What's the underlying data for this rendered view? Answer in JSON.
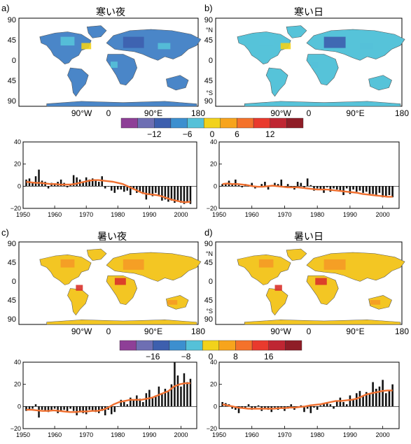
{
  "panels": [
    {
      "letter": "a)",
      "title": "寒い夜"
    },
    {
      "letter": "b)",
      "title": "寒い日"
    },
    {
      "letter": "c)",
      "title": "暑い夜"
    },
    {
      "letter": "d)",
      "title": "暑い日"
    }
  ],
  "map_axes": {
    "lat_ticks": [
      "90",
      "45",
      "0",
      "45",
      "90"
    ],
    "lat_units": [
      "°N",
      "°S"
    ],
    "lon_ticks": [
      "90°W",
      "0",
      "90°E",
      "180"
    ]
  },
  "colorbars": [
    {
      "labels": [
        "−12",
        "−6",
        "0",
        "6",
        "12"
      ],
      "colors": [
        "#8e3f97",
        "#6e6fb3",
        "#3d5fae",
        "#3c8fcf",
        "#55c1d8",
        "#f2d21b",
        "#f7a41c",
        "#f4722b",
        "#e93a2d",
        "#bf2632",
        "#8f1d27"
      ]
    },
    {
      "labels": [
        "−16",
        "−8",
        "0",
        "8",
        "16"
      ],
      "colors": [
        "#8e3f97",
        "#6e6fb3",
        "#3d5fae",
        "#3c8fcf",
        "#55c1d8",
        "#f2d21b",
        "#f7a41c",
        "#f4722b",
        "#e93a2d",
        "#bf2632",
        "#8f1d27"
      ]
    }
  ],
  "map_colors": {
    "ocean": "#ffffff",
    "coast": "#555555",
    "box": "#000000",
    "cold_fill": "#4a86c8",
    "cold_light": "#56c3d9",
    "warm_fill": "#f3c623",
    "warm_dark": "#f59a26",
    "red": "#d9322b"
  },
  "line_color": "#f07030",
  "chart_data": [
    {
      "type": "bar",
      "panel": "a",
      "title": "寒い夜",
      "xlim": [
        1950,
        2005
      ],
      "ylim": [
        -20,
        40
      ],
      "xticks": [
        1950,
        1960,
        1970,
        1980,
        1990,
        2000
      ],
      "yticks": [
        -20,
        0,
        20,
        40
      ],
      "x": [
        1951,
        1952,
        1953,
        1954,
        1955,
        1956,
        1957,
        1958,
        1959,
        1960,
        1961,
        1962,
        1963,
        1964,
        1965,
        1966,
        1967,
        1968,
        1969,
        1970,
        1971,
        1972,
        1973,
        1974,
        1975,
        1976,
        1977,
        1978,
        1979,
        1980,
        1981,
        1982,
        1983,
        1984,
        1985,
        1986,
        1987,
        1988,
        1989,
        1990,
        1991,
        1992,
        1993,
        1994,
        1995,
        1996,
        1997,
        1998,
        1999,
        2000,
        2001,
        2002,
        2003
      ],
      "values": [
        6,
        7,
        3,
        9,
        15,
        5,
        4,
        -2,
        3,
        2,
        4,
        6,
        3,
        -1,
        2,
        10,
        8,
        6,
        4,
        8,
        6,
        7,
        5,
        4,
        9,
        -2,
        0,
        -4,
        -6,
        -3,
        -3,
        -5,
        -4,
        -8,
        -3,
        -6,
        -5,
        -7,
        -12,
        -8,
        -9,
        -6,
        -8,
        -13,
        -12,
        -14,
        -13,
        -15,
        -14,
        -15,
        -16,
        -14,
        -16
      ],
      "trend": [
        4,
        3.5,
        3,
        3,
        2.5,
        2,
        2,
        1.5,
        1.5,
        1.5,
        2,
        3,
        4,
        5,
        5.5,
        5.5,
        5,
        4.5,
        4,
        3,
        2,
        0,
        -2,
        -4,
        -6,
        -7,
        -7.5,
        -8,
        -9,
        -10.5,
        -12,
        -13,
        -14,
        -14.5,
        -14
      ]
    },
    {
      "type": "bar",
      "panel": "b",
      "title": "寒い日",
      "xlim": [
        1950,
        2005
      ],
      "ylim": [
        -20,
        40
      ],
      "xticks": [
        1950,
        1960,
        1970,
        1980,
        1990,
        2000
      ],
      "yticks": [
        -20,
        0,
        20,
        40
      ],
      "x": [
        1951,
        1952,
        1953,
        1954,
        1955,
        1956,
        1957,
        1958,
        1959,
        1960,
        1961,
        1962,
        1963,
        1964,
        1965,
        1966,
        1967,
        1968,
        1969,
        1970,
        1971,
        1972,
        1973,
        1974,
        1975,
        1976,
        1977,
        1978,
        1979,
        1980,
        1981,
        1982,
        1983,
        1984,
        1985,
        1986,
        1987,
        1988,
        1989,
        1990,
        1991,
        1992,
        1993,
        1994,
        1995,
        1996,
        1997,
        1998,
        1999,
        2000,
        2001,
        2002,
        2003
      ],
      "values": [
        2,
        3,
        5,
        2,
        6,
        1,
        -1,
        2,
        0,
        3,
        -2,
        0,
        2,
        4,
        -3,
        1,
        3,
        2,
        6,
        -1,
        2,
        -1,
        -3,
        4,
        3,
        -2,
        7,
        1,
        -4,
        -2,
        -3,
        -6,
        -1,
        -5,
        -2,
        -3,
        -4,
        -8,
        -2,
        -7,
        -3,
        -5,
        -4,
        -6,
        -5,
        -8,
        -7,
        -9,
        -6,
        -10,
        -9,
        -8,
        -10
      ],
      "trend": [
        2,
        2.5,
        2,
        2,
        1.5,
        1,
        0,
        -0.5,
        -0.5,
        0,
        0.5,
        0,
        -0.5,
        -1,
        -1,
        -1,
        -1.5,
        -2,
        -2.5,
        -3,
        -3,
        -3,
        -3.5,
        -4,
        -4.5,
        -5,
        -5.5,
        -6,
        -7,
        -7.5,
        -8,
        -8.5,
        -9,
        -9.5,
        -9.5
      ]
    },
    {
      "type": "bar",
      "panel": "c",
      "title": "暑い夜",
      "xlim": [
        1950,
        2005
      ],
      "ylim": [
        -20,
        40
      ],
      "xticks": [
        1950,
        1960,
        1970,
        1980,
        1990,
        2000
      ],
      "yticks": [
        -20,
        0,
        20,
        40
      ],
      "x": [
        1951,
        1952,
        1953,
        1954,
        1955,
        1956,
        1957,
        1958,
        1959,
        1960,
        1961,
        1962,
        1963,
        1964,
        1965,
        1966,
        1967,
        1968,
        1969,
        1970,
        1971,
        1972,
        1973,
        1974,
        1975,
        1976,
        1977,
        1978,
        1979,
        1980,
        1981,
        1982,
        1983,
        1984,
        1985,
        1986,
        1987,
        1988,
        1989,
        1990,
        1991,
        1992,
        1993,
        1994,
        1995,
        1996,
        1997,
        1998,
        1999,
        2000,
        2001,
        2002,
        2003
      ],
      "values": [
        -4,
        -3,
        -2,
        2,
        -10,
        -3,
        -4,
        -5,
        -3,
        -2,
        -6,
        -4,
        -3,
        -5,
        -2,
        -4,
        -8,
        -5,
        -6,
        -7,
        -3,
        -4,
        -5,
        -6,
        -4,
        -8,
        -3,
        -7,
        -5,
        0,
        6,
        4,
        2,
        8,
        6,
        10,
        7,
        4,
        12,
        15,
        8,
        10,
        18,
        12,
        16,
        14,
        20,
        40,
        28,
        18,
        30,
        22,
        25
      ],
      "trend": [
        -3,
        -3,
        -3.5,
        -4,
        -4,
        -3.5,
        -4,
        -4.5,
        -5,
        -5,
        -4.5,
        -4.5,
        -4,
        -4,
        -3,
        -1,
        2,
        4,
        5,
        6,
        6,
        6,
        7,
        8,
        10,
        12,
        14,
        18,
        20,
        21,
        21
      ]
    },
    {
      "type": "bar",
      "panel": "d",
      "title": "暑い日",
      "xlim": [
        1950,
        2005
      ],
      "ylim": [
        -20,
        40
      ],
      "xticks": [
        1950,
        1960,
        1970,
        1980,
        1990,
        2000
      ],
      "yticks": [
        -20,
        0,
        20,
        40
      ],
      "x": [
        1951,
        1952,
        1953,
        1954,
        1955,
        1956,
        1957,
        1958,
        1959,
        1960,
        1961,
        1962,
        1963,
        1964,
        1965,
        1966,
        1967,
        1968,
        1969,
        1970,
        1971,
        1972,
        1973,
        1974,
        1975,
        1976,
        1977,
        1978,
        1979,
        1980,
        1981,
        1982,
        1983,
        1984,
        1985,
        1986,
        1987,
        1988,
        1989,
        1990,
        1991,
        1992,
        1993,
        1994,
        1995,
        1996,
        1997,
        1998,
        1999,
        2000,
        2001,
        2002,
        2003
      ],
      "values": [
        4,
        3,
        2,
        -2,
        -3,
        -6,
        -2,
        -1,
        2,
        -3,
        -2,
        1,
        -4,
        -2,
        -3,
        -5,
        -1,
        -3,
        -2,
        -4,
        -2,
        2,
        -3,
        -1,
        1,
        -5,
        -2,
        -6,
        -1,
        -3,
        1,
        3,
        4,
        2,
        -2,
        5,
        8,
        4,
        2,
        10,
        6,
        12,
        14,
        9,
        13,
        11,
        22,
        16,
        18,
        24,
        12,
        15,
        20
      ],
      "trend": [
        2,
        1,
        0,
        -1,
        -1.5,
        -2,
        -2,
        -2,
        -2,
        -2,
        -2,
        -1.5,
        -1.5,
        -1,
        -1,
        -0.5,
        0,
        1,
        1.5,
        2,
        3,
        4,
        5,
        5,
        5.5,
        6,
        7,
        9,
        11,
        12,
        13,
        14,
        14.5,
        14.5
      ]
    }
  ]
}
